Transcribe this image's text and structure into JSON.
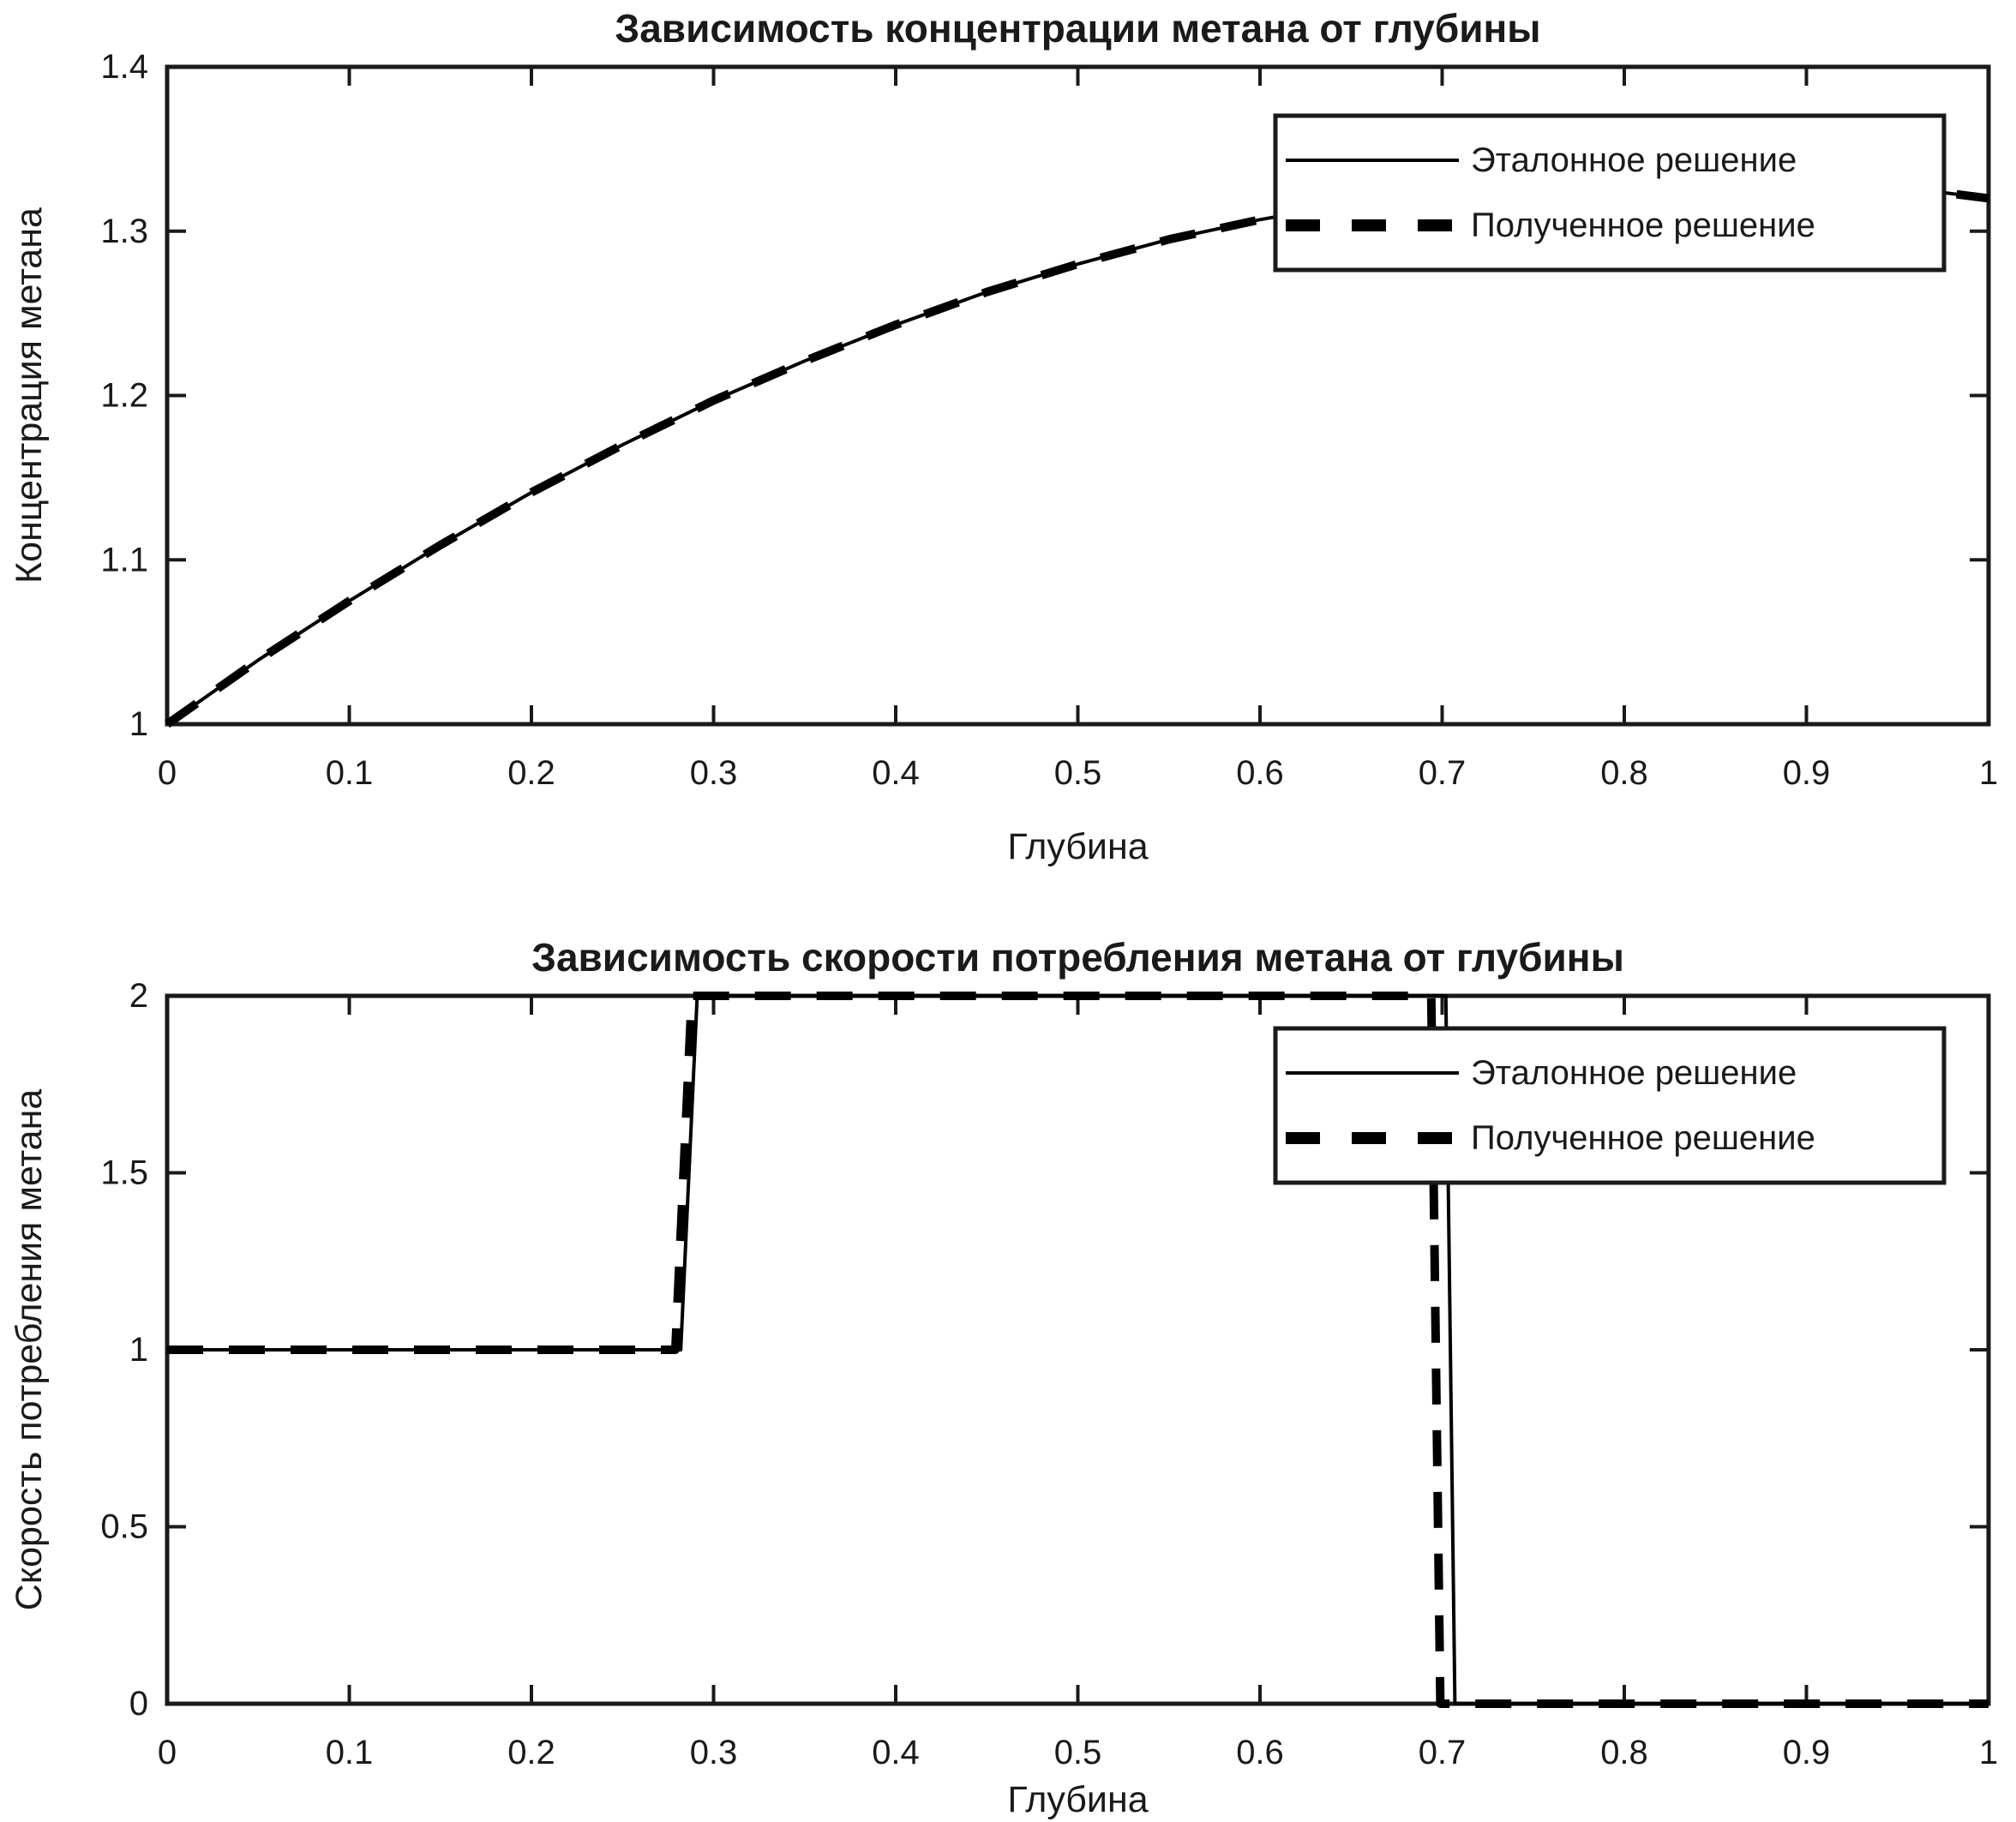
{
  "figure": {
    "background": "#ffffff",
    "axis_color": "#1a1a1a",
    "text_color": "#1a1a1a",
    "line_color": "#000000"
  },
  "chart_data": [
    {
      "type": "line",
      "title": "Зависимость концентрации метана от глубины",
      "xlabel": "Глубина",
      "ylabel": "Концентрация метана",
      "xlim": [
        0,
        1
      ],
      "ylim": [
        1,
        1.4
      ],
      "grid": false,
      "xticks": [
        0,
        0.1,
        0.2,
        0.3,
        0.4,
        0.5,
        0.6,
        0.7,
        0.8,
        0.9,
        1
      ],
      "xtick_labels": [
        "0",
        "0.1",
        "0.2",
        "0.3",
        "0.4",
        "0.5",
        "0.6",
        "0.7",
        "0.8",
        "0.9",
        "1"
      ],
      "yticks": [
        1,
        1.1,
        1.2,
        1.3,
        1.4
      ],
      "ytick_labels": [
        "1",
        "1.1",
        "1.2",
        "1.3",
        "1.4"
      ],
      "legend": {
        "position": "upper-right",
        "entries": [
          {
            "label": "Эталонное решение",
            "style": "solid"
          },
          {
            "label": "Полученное решение",
            "style": "dashed"
          }
        ]
      },
      "series": [
        {
          "name": "Эталонное решение",
          "style": "solid",
          "x": [
            0,
            0.05,
            0.1,
            0.15,
            0.2,
            0.25,
            0.3,
            0.35,
            0.4,
            0.45,
            0.5,
            0.55,
            0.6,
            0.65,
            0.7,
            0.75,
            0.8,
            0.85,
            0.9,
            0.95,
            1
          ],
          "y": [
            1.0,
            1.039,
            1.075,
            1.109,
            1.141,
            1.17,
            1.197,
            1.221,
            1.243,
            1.263,
            1.28,
            1.295,
            1.307,
            1.317,
            1.325,
            1.33,
            1.333,
            1.333,
            1.331,
            1.327,
            1.32
          ]
        },
        {
          "name": "Полученное решение",
          "style": "dashed",
          "x": [
            0,
            0.05,
            0.1,
            0.15,
            0.2,
            0.25,
            0.3,
            0.35,
            0.4,
            0.45,
            0.5,
            0.55,
            0.6,
            0.65,
            0.7,
            0.75,
            0.8,
            0.85,
            0.9,
            0.95,
            1
          ],
          "y": [
            1.0,
            1.039,
            1.075,
            1.109,
            1.141,
            1.17,
            1.197,
            1.221,
            1.243,
            1.263,
            1.28,
            1.295,
            1.307,
            1.317,
            1.325,
            1.33,
            1.333,
            1.333,
            1.331,
            1.327,
            1.32
          ]
        }
      ]
    },
    {
      "type": "line",
      "title": "Зависимость скорости потребления метана от глубины",
      "xlabel": "Глубина",
      "ylabel": "Скорость потребления метана",
      "xlim": [
        0,
        1
      ],
      "ylim": [
        0,
        2
      ],
      "grid": false,
      "xticks": [
        0,
        0.1,
        0.2,
        0.3,
        0.4,
        0.5,
        0.6,
        0.7,
        0.8,
        0.9,
        1
      ],
      "xtick_labels": [
        "0",
        "0.1",
        "0.2",
        "0.3",
        "0.4",
        "0.5",
        "0.6",
        "0.7",
        "0.8",
        "0.9",
        "1"
      ],
      "yticks": [
        0,
        0.5,
        1,
        1.5,
        2
      ],
      "ytick_labels": [
        "0",
        "0.5",
        "1",
        "1.5",
        "2"
      ],
      "legend": {
        "position": "upper-right",
        "entries": [
          {
            "label": "Эталонное решение",
            "style": "solid"
          },
          {
            "label": "Полученное решение",
            "style": "dashed"
          }
        ]
      },
      "series": [
        {
          "name": "Эталонное решение",
          "style": "solid",
          "x": [
            0,
            0.282,
            0.291,
            0.702,
            0.707,
            1
          ],
          "y": [
            1,
            1,
            2,
            2,
            0,
            0
          ]
        },
        {
          "name": "Полученное решение",
          "style": "dashed",
          "x": [
            0,
            0.279,
            0.288,
            0.694,
            0.699,
            1
          ],
          "y": [
            1,
            1,
            2,
            2,
            0,
            0
          ]
        }
      ]
    }
  ]
}
